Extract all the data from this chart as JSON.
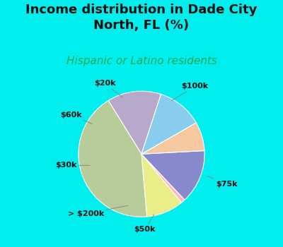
{
  "title": "Income distribution in Dade City\nNorth, FL (%)",
  "subtitle": "Hispanic or Latino residents",
  "labels": [
    "$100k",
    "$75k",
    "$50k",
    "> $200k",
    "$30k",
    "$60k",
    "$20k"
  ],
  "sizes": [
    13,
    40,
    9,
    1,
    13,
    7,
    11
  ],
  "colors": [
    "#b8a8cc",
    "#b8cc9a",
    "#eaee88",
    "#ffb8c0",
    "#8888cc",
    "#f5c8a0",
    "#88ccee"
  ],
  "background_top": "#00eeee",
  "chart_bg_color": "#e0f0e8",
  "title_color": "#111111",
  "subtitle_color": "#22aa55",
  "title_fontsize": 13,
  "subtitle_fontsize": 11,
  "startangle": 72,
  "label_fontsize": 8
}
